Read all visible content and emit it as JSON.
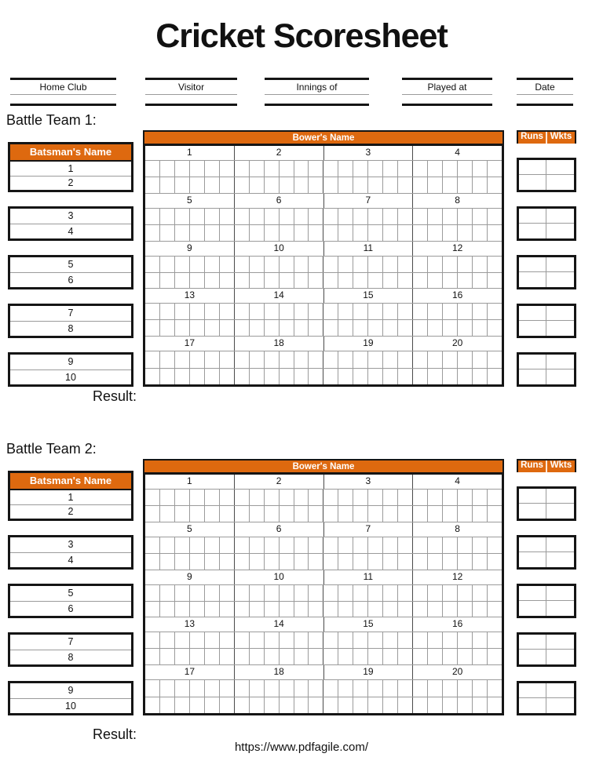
{
  "title": "Cricket Scoresheet",
  "header_fields": [
    {
      "label": "Home Club"
    },
    {
      "label": "Visitor"
    },
    {
      "label": "Innings of"
    },
    {
      "label": "Played at"
    },
    {
      "label": "Date"
    }
  ],
  "teams": [
    {
      "section_label": "Battle Team 1:",
      "batsman_header": "Batsman's Name",
      "bowler_header": "Bower's Name",
      "runs_header": "Runs",
      "wkts_header": "Wkts",
      "batsman_numbers": [
        "1",
        "2",
        "3",
        "4",
        "5",
        "6",
        "7",
        "8",
        "9",
        "10"
      ],
      "over_numbers": [
        "1",
        "2",
        "3",
        "4",
        "5",
        "6",
        "7",
        "8",
        "9",
        "10",
        "11",
        "12",
        "13",
        "14",
        "15",
        "16",
        "17",
        "18",
        "19",
        "20"
      ],
      "result_label": "Result:"
    },
    {
      "section_label": "Battle Team 2:",
      "batsman_header": "Batsman's Name",
      "bowler_header": "Bower's Name",
      "runs_header": "Runs",
      "wkts_header": "Wkts",
      "batsman_numbers": [
        "1",
        "2",
        "3",
        "4",
        "5",
        "6",
        "7",
        "8",
        "9",
        "10"
      ],
      "over_numbers": [
        "1",
        "2",
        "3",
        "4",
        "5",
        "6",
        "7",
        "8",
        "9",
        "10",
        "11",
        "12",
        "13",
        "14",
        "15",
        "16",
        "17",
        "18",
        "19",
        "20"
      ],
      "result_label": "Result:"
    }
  ],
  "grid": {
    "overs_per_row": 4,
    "ball_cells_per_over": 6,
    "cell_rows_per_over": 2,
    "batsmen_per_box": 2
  },
  "colors": {
    "accent_orange": "#DE690F",
    "border_black": "#151515",
    "grid_line_gray": "#9B9B9B"
  },
  "footer_url": "https://www.pdfagile.com/"
}
